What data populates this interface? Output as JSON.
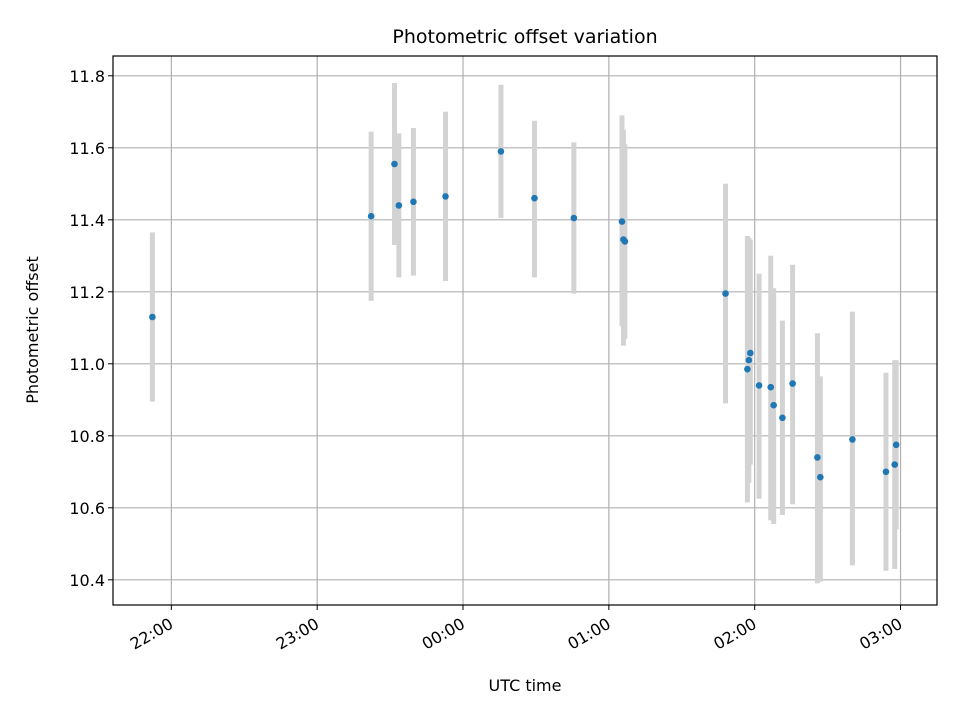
{
  "chart_data": {
    "type": "scatter",
    "title": "Photometric offset variation",
    "xlabel": "UTC time",
    "ylabel": "Photometric offset",
    "x_unit": "hours (UTC, continuing past midnight as 24+)",
    "xlim": [
      21.6,
      27.25
    ],
    "ylim": [
      10.33,
      11.855
    ],
    "x_ticks": [
      {
        "value": 22,
        "label": "22:00"
      },
      {
        "value": 23,
        "label": "23:00"
      },
      {
        "value": 24,
        "label": "00:00"
      },
      {
        "value": 25,
        "label": "01:00"
      },
      {
        "value": 26,
        "label": "02:00"
      },
      {
        "value": 27,
        "label": "03:00"
      }
    ],
    "y_ticks": [
      {
        "value": 10.4,
        "label": "10.4"
      },
      {
        "value": 10.6,
        "label": "10.6"
      },
      {
        "value": 10.8,
        "label": "10.8"
      },
      {
        "value": 11.0,
        "label": "11.0"
      },
      {
        "value": 11.2,
        "label": "11.2"
      },
      {
        "value": 11.4,
        "label": "11.4"
      },
      {
        "value": 11.6,
        "label": "11.6"
      },
      {
        "value": 11.8,
        "label": "11.8"
      }
    ],
    "grid": true,
    "marker_color": "#1f77b4",
    "errorbar_color": "#d3d3d3",
    "points": [
      {
        "x": 21.87,
        "y": 11.13,
        "ylo": 10.895,
        "yhi": 11.365
      },
      {
        "x": 23.37,
        "y": 11.41,
        "ylo": 11.175,
        "yhi": 11.645
      },
      {
        "x": 23.53,
        "y": 11.555,
        "ylo": 11.33,
        "yhi": 11.78
      },
      {
        "x": 23.56,
        "y": 11.44,
        "ylo": 11.24,
        "yhi": 11.64
      },
      {
        "x": 23.66,
        "y": 11.45,
        "ylo": 11.245,
        "yhi": 11.655
      },
      {
        "x": 23.88,
        "y": 11.465,
        "ylo": 11.23,
        "yhi": 11.7
      },
      {
        "x": 24.26,
        "y": 11.59,
        "ylo": 11.405,
        "yhi": 11.775
      },
      {
        "x": 24.49,
        "y": 11.46,
        "ylo": 11.24,
        "yhi": 11.675
      },
      {
        "x": 24.76,
        "y": 11.405,
        "ylo": 11.195,
        "yhi": 11.615
      },
      {
        "x": 25.09,
        "y": 11.395,
        "ylo": 11.105,
        "yhi": 11.69
      },
      {
        "x": 25.1,
        "y": 11.345,
        "ylo": 11.05,
        "yhi": 11.65
      },
      {
        "x": 25.11,
        "y": 11.34,
        "ylo": 11.07,
        "yhi": 11.61
      },
      {
        "x": 25.8,
        "y": 11.195,
        "ylo": 10.89,
        "yhi": 11.5
      },
      {
        "x": 25.95,
        "y": 10.985,
        "ylo": 10.615,
        "yhi": 11.355
      },
      {
        "x": 25.96,
        "y": 11.01,
        "ylo": 10.67,
        "yhi": 11.35
      },
      {
        "x": 25.97,
        "y": 11.03,
        "ylo": 10.72,
        "yhi": 11.345
      },
      {
        "x": 26.03,
        "y": 10.94,
        "ylo": 10.625,
        "yhi": 11.25
      },
      {
        "x": 26.11,
        "y": 10.935,
        "ylo": 10.565,
        "yhi": 11.3
      },
      {
        "x": 26.13,
        "y": 10.885,
        "ylo": 10.555,
        "yhi": 11.21
      },
      {
        "x": 26.19,
        "y": 10.85,
        "ylo": 10.58,
        "yhi": 11.12
      },
      {
        "x": 26.26,
        "y": 10.945,
        "ylo": 10.61,
        "yhi": 11.275
      },
      {
        "x": 26.43,
        "y": 10.74,
        "ylo": 10.39,
        "yhi": 11.085
      },
      {
        "x": 26.45,
        "y": 10.685,
        "ylo": 10.395,
        "yhi": 10.965
      },
      {
        "x": 26.67,
        "y": 10.79,
        "ylo": 10.44,
        "yhi": 11.145
      },
      {
        "x": 26.9,
        "y": 10.7,
        "ylo": 10.425,
        "yhi": 10.975
      },
      {
        "x": 26.96,
        "y": 10.72,
        "ylo": 10.43,
        "yhi": 11.01
      },
      {
        "x": 26.97,
        "y": 10.775,
        "ylo": 10.54,
        "yhi": 11.01
      }
    ]
  }
}
